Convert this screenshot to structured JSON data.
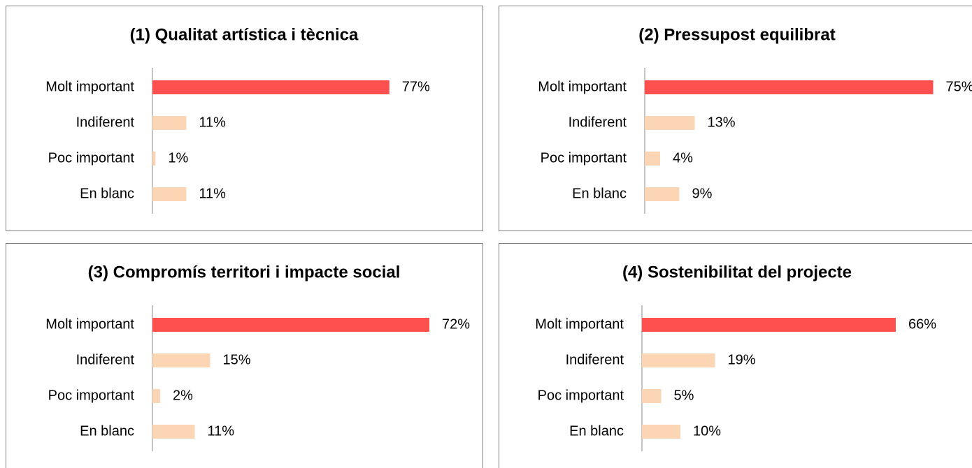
{
  "chart_data": [
    {
      "type": "barh",
      "title": "(1) Qualitat artística i tècnica",
      "categories": [
        "Molt important",
        "Indiferent",
        "Poc important",
        "En blanc"
      ],
      "values": [
        77,
        11,
        1,
        11
      ],
      "value_labels": [
        "77%",
        "11%",
        "1%",
        "11%"
      ],
      "colors": [
        "#ff5050",
        "#fcd5b4",
        "#fcd5b4",
        "#fcd5b4"
      ],
      "xlim": [
        0,
        100
      ]
    },
    {
      "type": "barh",
      "title": "(2) Pressupost equilibrat",
      "categories": [
        "Molt important",
        "Indiferent",
        "Poc important",
        "En blanc"
      ],
      "values": [
        75,
        13,
        4,
        9
      ],
      "value_labels": [
        "75%",
        "13%",
        "4%",
        "9%"
      ],
      "colors": [
        "#ff5050",
        "#fcd5b4",
        "#fcd5b4",
        "#fcd5b4"
      ],
      "xlim": [
        0,
        80
      ]
    },
    {
      "type": "barh",
      "title": "(3) Compromís territori i impacte social",
      "categories": [
        "Molt important",
        "Indiferent",
        "Poc important",
        "En blanc"
      ],
      "values": [
        72,
        15,
        2,
        11
      ],
      "value_labels": [
        "72%",
        "15%",
        "2%",
        "11%"
      ],
      "colors": [
        "#ff5050",
        "#fcd5b4",
        "#fcd5b4",
        "#fcd5b4"
      ],
      "xlim": [
        0,
        80
      ]
    },
    {
      "type": "barh",
      "title": "(4) Sostenibilitat del projecte",
      "categories": [
        "Molt important",
        "Indiferent",
        "Poc important",
        "En blanc"
      ],
      "values": [
        66,
        19,
        5,
        10
      ],
      "value_labels": [
        "66%",
        "19%",
        "5%",
        "10%"
      ],
      "colors": [
        "#ff5050",
        "#fcd5b4",
        "#fcd5b4",
        "#fcd5b4"
      ],
      "xlim": [
        0,
        80
      ]
    }
  ]
}
